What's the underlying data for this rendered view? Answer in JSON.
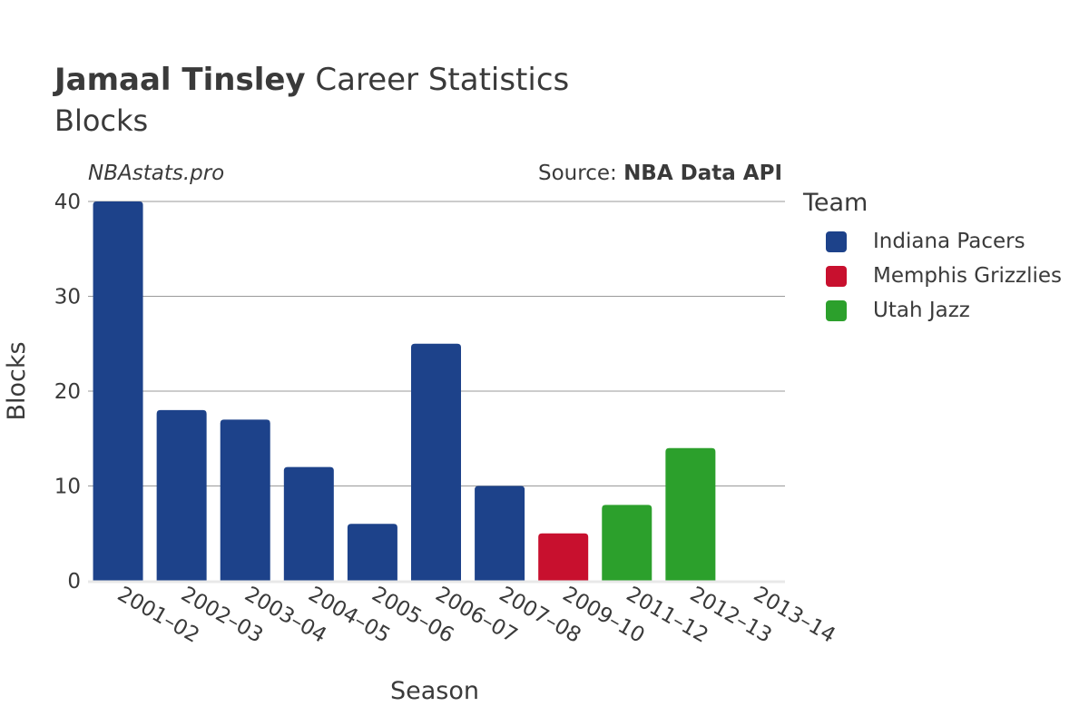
{
  "header": {
    "title_bold": "Jamaal Tinsley",
    "title_rest": " Career Statistics",
    "subtitle": "Blocks",
    "site": "NBAstats.pro",
    "source_prefix": "Source: ",
    "source_name": "NBA Data API"
  },
  "legend": {
    "title": "Team",
    "items": [
      {
        "label": "Indiana Pacers",
        "color": "#1d428a"
      },
      {
        "label": "Memphis Grizzlies",
        "color": "#c8102e"
      },
      {
        "label": "Utah Jazz",
        "color": "#2ca02c"
      }
    ]
  },
  "chart_data": {
    "type": "bar",
    "xlabel": "Season",
    "ylabel": "Blocks",
    "ylim": [
      0,
      40
    ],
    "yticks": [
      0,
      10,
      20,
      30,
      40
    ],
    "grid": true,
    "legend_position": "right",
    "categories": [
      "2001–02",
      "2002–03",
      "2003–04",
      "2004–05",
      "2005–06",
      "2006–07",
      "2007–08",
      "2009–10",
      "2011–12",
      "2012–13",
      "2013–14"
    ],
    "values": [
      40,
      18,
      17,
      12,
      6,
      25,
      10,
      5,
      8,
      14,
      0
    ],
    "teams": [
      "Indiana Pacers",
      "Indiana Pacers",
      "Indiana Pacers",
      "Indiana Pacers",
      "Indiana Pacers",
      "Indiana Pacers",
      "Indiana Pacers",
      "Memphis Grizzlies",
      "Utah Jazz",
      "Utah Jazz",
      "Utah Jazz"
    ]
  }
}
